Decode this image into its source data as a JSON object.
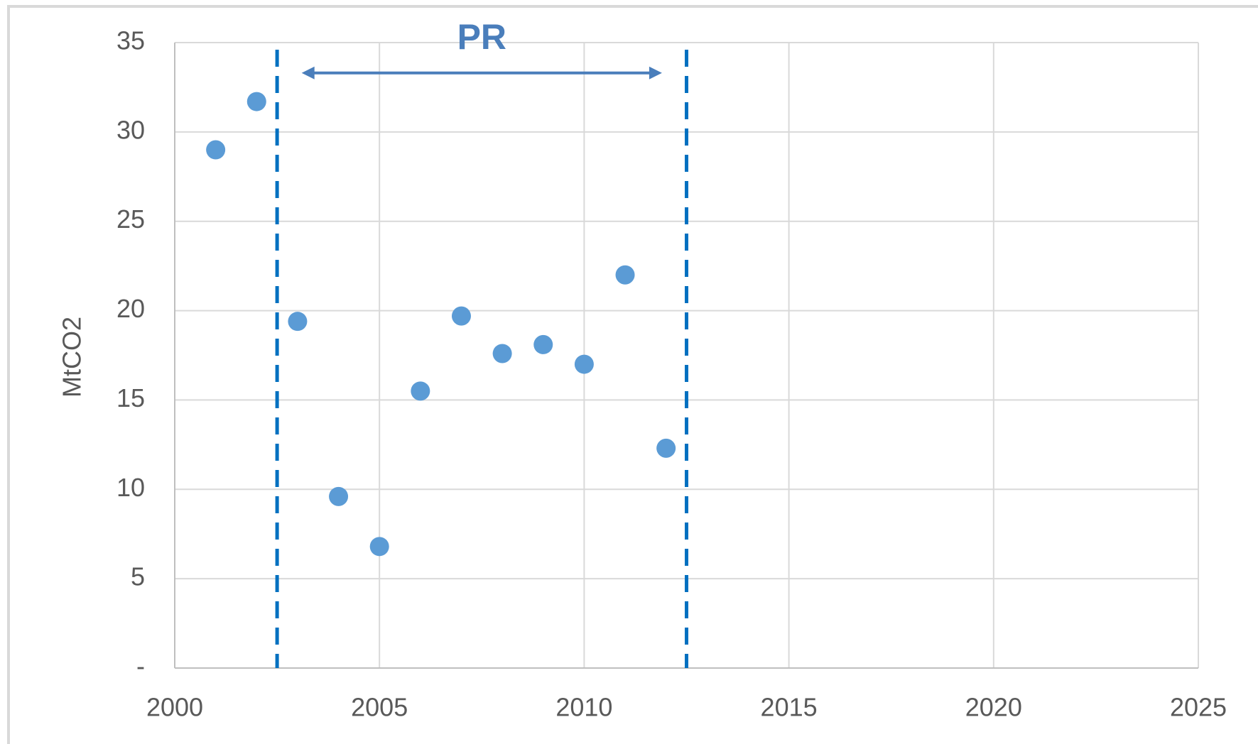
{
  "chart_data": {
    "type": "scatter",
    "y_label": "MtCO2",
    "x": [
      2001,
      2002,
      2003,
      2004,
      2005,
      2006,
      2007,
      2008,
      2009,
      2010,
      2011,
      2012
    ],
    "series": [
      {
        "name": null,
        "color": "#5b9bd5",
        "values": [
          29.0,
          31.7,
          19.4,
          9.6,
          6.8,
          15.5,
          19.7,
          17.6,
          18.1,
          17.0,
          22.0,
          12.3
        ]
      }
    ],
    "xlim": [
      2000,
      2025
    ],
    "xticks": [
      2000,
      2005,
      2010,
      2015,
      2020,
      2025
    ],
    "ylim": [
      0,
      35
    ],
    "yticks": [
      {
        "value": 0,
        "label": "-"
      },
      5,
      10,
      15,
      20,
      25,
      30,
      35
    ],
    "grid": true,
    "reference_lines": {
      "color": "#0070c0",
      "x": [
        2002.5,
        2012.5
      ]
    },
    "annotation": {
      "text": "PR",
      "color": "#4a7ebb",
      "x_start": 2003.1,
      "x_end": 2011.9,
      "y": 33.3
    }
  }
}
